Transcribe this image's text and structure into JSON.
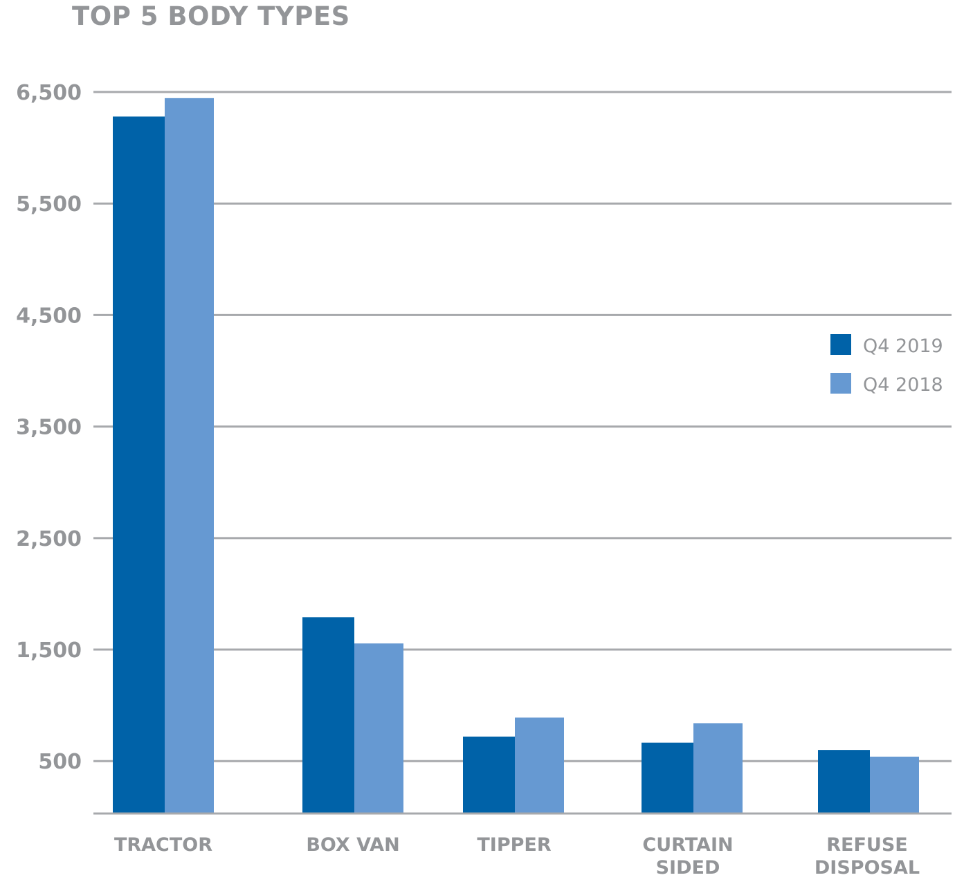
{
  "chart_data": {
    "type": "bar",
    "title": "TOP 5 BODY TYPES",
    "categories": [
      "TRACTOR",
      "BOX VAN",
      "TIPPER",
      "CURTAIN SIDED",
      "REFUSE DISPOSAL"
    ],
    "category_lines": [
      [
        "TRACTOR"
      ],
      [
        "BOX VAN"
      ],
      [
        "TIPPER"
      ],
      [
        "CURTAIN",
        "SIDED"
      ],
      [
        "REFUSE",
        "DISPOSAL"
      ]
    ],
    "series": [
      {
        "name": "Q4 2019",
        "color": "#0062a8",
        "values": [
          6280,
          1790,
          720,
          665,
          600
        ]
      },
      {
        "name": "Q4 2018",
        "color": "#6699d2",
        "values": [
          6445,
          1555,
          890,
          840,
          540
        ]
      }
    ],
    "y_ticks": [
      500,
      1500,
      2500,
      3500,
      4500,
      5500,
      6500
    ],
    "y_tick_labels": [
      "500",
      "1,500",
      "2,500",
      "3,500",
      "4,500",
      "5,500",
      "6,500"
    ],
    "ylim": [
      30,
      6500
    ],
    "grid": true,
    "gridline_color": "#a7a9ac",
    "axis_text_color": "#939598",
    "legend_position": "right"
  }
}
